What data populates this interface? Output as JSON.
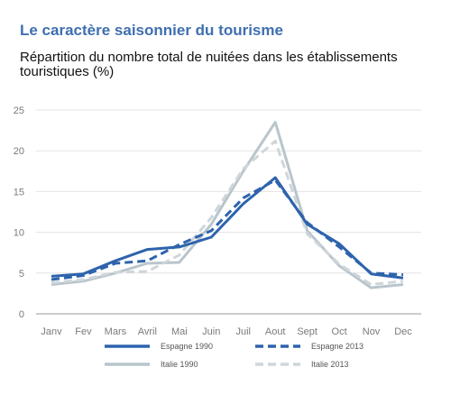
{
  "title": "Le caractère saisonnier du tourisme",
  "subtitle": "Répartition du nombre total de nuitées dans les établissements touristiques (%)",
  "chart_data": {
    "type": "line",
    "title": "Le caractère saisonnier du tourisme",
    "subtitle": "Répartition du nombre total de nuitées dans les établissements touristiques (%)",
    "xlabel": "",
    "ylabel": "",
    "categories": [
      "Janv",
      "Fev",
      "Mars",
      "Avril",
      "Mai",
      "Juin",
      "Juil",
      "Aout",
      "Sept",
      "Oct",
      "Nov",
      "Dec"
    ],
    "ylim": [
      0,
      25
    ],
    "yticks": [
      0,
      5,
      10,
      15,
      20,
      25
    ],
    "grid": true,
    "legend_position": "bottom",
    "series": [
      {
        "name": "Espagne 1990",
        "color": "#2e63ad",
        "style": "solid",
        "values": [
          4.6,
          4.9,
          6.5,
          7.9,
          8.2,
          9.4,
          13.5,
          16.7,
          11.0,
          8.6,
          4.9,
          4.4
        ]
      },
      {
        "name": "Espagne 2013",
        "color": "#2e63ad",
        "style": "dashed",
        "values": [
          4.2,
          4.7,
          6.2,
          6.5,
          8.5,
          10.2,
          14.2,
          16.4,
          11.2,
          8.2,
          5.0,
          4.8
        ]
      },
      {
        "name": "Italie 1990",
        "color": "#b9c5cc",
        "style": "solid",
        "values": [
          3.6,
          4.0,
          5.0,
          6.2,
          6.3,
          11.0,
          17.5,
          23.5,
          10.2,
          5.9,
          3.2,
          3.6
        ]
      },
      {
        "name": "Italie 2013",
        "color": "#cfd6da",
        "style": "dashed",
        "values": [
          3.8,
          4.2,
          5.1,
          5.2,
          7.2,
          11.8,
          17.8,
          21.2,
          9.8,
          6.1,
          3.6,
          4.0
        ]
      }
    ]
  }
}
